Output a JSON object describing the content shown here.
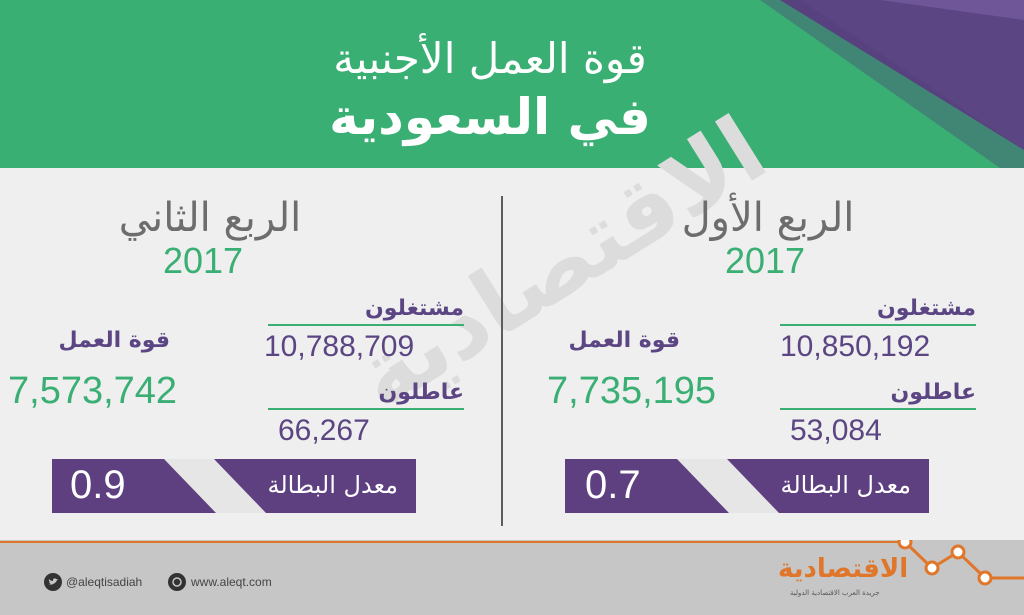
{
  "header": {
    "title_line1": "قوة العمل الأجنبية",
    "title_line2": "في السعودية"
  },
  "watermark": "الاقتصادية",
  "quarters": [
    {
      "name": "الربع الأول",
      "year": "2017",
      "employed_label": "مشتغلون",
      "employed_value": "10,850,192",
      "labor_force_label": "قوة العمل",
      "labor_force_value": "7,735,195",
      "unemployed_label": "عاطلون",
      "unemployed_value": "53,084",
      "rate_label": "معدل البطالة",
      "rate_value": "0.7"
    },
    {
      "name": "الربع الثاني",
      "year": "2017",
      "employed_label": "مشتغلون",
      "employed_value": "10,788,709",
      "labor_force_label": "قوة العمل",
      "labor_force_value": "7,573,742",
      "unemployed_label": "عاطلون",
      "unemployed_value": "66,267",
      "rate_label": "معدل البطالة",
      "rate_value": "0.9"
    }
  ],
  "footer": {
    "twitter_handle": "@aleqtisadiah",
    "website": "www.aleqt.com",
    "logo_text": "الاقتصادية",
    "logo_subtext": "جريدة العرب الاقتصادية الدولية"
  },
  "colors": {
    "green": "#3aaf74",
    "purple": "#5e3f80",
    "orange": "#e0762a"
  }
}
